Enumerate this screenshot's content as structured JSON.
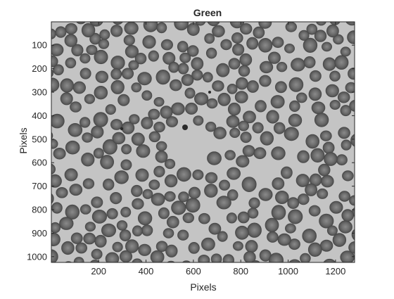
{
  "chart_data": {
    "type": "image",
    "title": "Green",
    "xlabel": "Pixels",
    "ylabel": "Pixels",
    "xlim": [
      0.5,
      1280.5
    ],
    "ylim": [
      0.5,
      1024.5
    ],
    "y_reversed": true,
    "x_ticks": [
      200,
      400,
      600,
      800,
      1000,
      1200
    ],
    "y_ticks": [
      100,
      200,
      300,
      400,
      500,
      600,
      700,
      800,
      900,
      1000
    ],
    "colormap": "gray",
    "colors": {
      "background": "#c4c4c4",
      "cell": "#6b6b6b",
      "cell_edge": "#4a4a4a",
      "axis": "#262626"
    }
  }
}
